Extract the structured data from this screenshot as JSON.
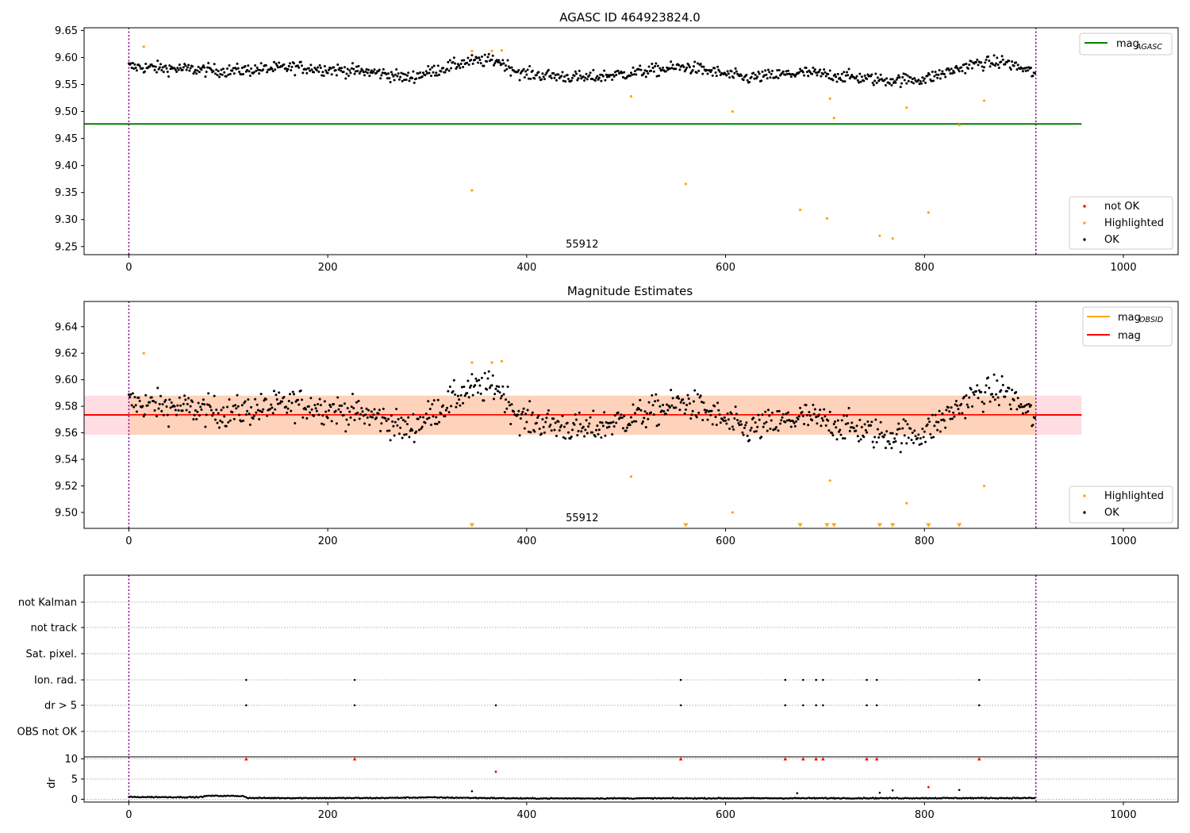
{
  "figure": {
    "ok_color": "#000000",
    "highlight_color": "#ffa500",
    "not_ok_color": "#ff0000"
  },
  "chart_data": [
    {
      "type": "scatter",
      "title": "AGASC ID 464923824.0",
      "xlim": [
        -45,
        1055
      ],
      "ylim": [
        9.235,
        9.655
      ],
      "x_ticks": [
        0,
        200,
        400,
        600,
        800,
        1000
      ],
      "y_ticks": [
        9.25,
        9.3,
        9.35,
        9.4,
        9.45,
        9.5,
        9.55,
        9.6,
        9.65
      ],
      "obs_boundaries": [
        0,
        912
      ],
      "obs_label": {
        "text": "55912",
        "x": 455
      },
      "mag_agasc": {
        "value": 9.477,
        "x_start": -45,
        "x_end": 958,
        "color": "#008000"
      },
      "series_ok": {
        "name": "OK",
        "n_points": 912,
        "baseline": [
          [
            0,
            9.583
          ],
          [
            100,
            9.575
          ],
          [
            170,
            9.582
          ],
          [
            250,
            9.572
          ],
          [
            280,
            9.562
          ],
          [
            340,
            9.592
          ],
          [
            370,
            9.595
          ],
          [
            395,
            9.57
          ],
          [
            460,
            9.562
          ],
          [
            560,
            9.583
          ],
          [
            620,
            9.562
          ],
          [
            680,
            9.572
          ],
          [
            760,
            9.558
          ],
          [
            800,
            9.56
          ],
          [
            850,
            9.588
          ],
          [
            880,
            9.592
          ],
          [
            912,
            9.57
          ]
        ]
      },
      "series_highlighted": {
        "name": "Highlighted",
        "points": [
          [
            15,
            9.62
          ],
          [
            345,
            9.612
          ],
          [
            365,
            9.612
          ],
          [
            375,
            9.613
          ],
          [
            345,
            9.354
          ],
          [
            505,
            9.528
          ],
          [
            560,
            9.366
          ],
          [
            607,
            9.5
          ],
          [
            675,
            9.318
          ],
          [
            702,
            9.302
          ],
          [
            705,
            9.524
          ],
          [
            709,
            9.488
          ],
          [
            755,
            9.27
          ],
          [
            768,
            9.265
          ],
          [
            782,
            9.507
          ],
          [
            804,
            9.313
          ],
          [
            835,
            9.475
          ],
          [
            860,
            9.52
          ]
        ]
      },
      "legend_upper": [
        {
          "label": "mag",
          "sub": "AGASC",
          "type": "line",
          "color": "#008000"
        }
      ],
      "legend_lower": [
        {
          "label": "not OK",
          "type": "marker",
          "color": "#ff0000"
        },
        {
          "label": "Highlighted",
          "type": "marker",
          "color": "#ffa500"
        },
        {
          "label": "OK",
          "type": "marker",
          "color": "#000000"
        }
      ]
    },
    {
      "type": "scatter",
      "title": "Magnitude Estimates",
      "xlim": [
        -45,
        1055
      ],
      "ylim": [
        9.488,
        9.659
      ],
      "x_ticks": [
        0,
        200,
        400,
        600,
        800,
        1000
      ],
      "y_ticks": [
        9.5,
        9.52,
        9.54,
        9.56,
        9.58,
        9.6,
        9.62,
        9.64
      ],
      "obs_boundaries": [
        0,
        912
      ],
      "obs_label": {
        "text": "55912",
        "x": 455
      },
      "mag": {
        "value": 9.5735,
        "color": "#ff0000"
      },
      "band_full": {
        "x_start": -45,
        "x_end": 958,
        "y_low": 9.5585,
        "y_high": 9.588,
        "color": "#ffdde3"
      },
      "band_obsid": {
        "x_start": 0,
        "x_end": 912,
        "y_low": 9.5585,
        "y_high": 9.588,
        "color": "#ffd2bb"
      },
      "series_ok": {
        "name": "OK",
        "n_points": 912,
        "baseline": [
          [
            0,
            9.583
          ],
          [
            100,
            9.575
          ],
          [
            170,
            9.582
          ],
          [
            250,
            9.572
          ],
          [
            280,
            9.562
          ],
          [
            340,
            9.592
          ],
          [
            370,
            9.595
          ],
          [
            395,
            9.57
          ],
          [
            460,
            9.562
          ],
          [
            560,
            9.583
          ],
          [
            620,
            9.562
          ],
          [
            680,
            9.572
          ],
          [
            760,
            9.558
          ],
          [
            800,
            9.56
          ],
          [
            850,
            9.588
          ],
          [
            880,
            9.592
          ],
          [
            912,
            9.57
          ]
        ]
      },
      "series_highlighted": {
        "name": "Highlighted",
        "points": [
          [
            15,
            9.62
          ],
          [
            345,
            9.613
          ],
          [
            365,
            9.613
          ],
          [
            375,
            9.614
          ],
          [
            505,
            9.527
          ],
          [
            607,
            9.5
          ],
          [
            705,
            9.524
          ],
          [
            782,
            9.507
          ],
          [
            860,
            9.52
          ]
        ]
      },
      "out_of_range_x": [
        345,
        560,
        675,
        702,
        709,
        755,
        768,
        804,
        835
      ],
      "legend_upper": [
        {
          "label": "mag",
          "sub": "OBSID",
          "type": "line",
          "color": "#ffa500"
        },
        {
          "label": "mag",
          "sub": "",
          "type": "line",
          "color": "#ff0000"
        }
      ],
      "legend_lower": [
        {
          "label": "Highlighted",
          "type": "marker",
          "color": "#ffa500"
        },
        {
          "label": "OK",
          "type": "marker",
          "color": "#000000"
        }
      ]
    },
    {
      "type": "scatter",
      "title": "",
      "xlim": [
        -45,
        1055
      ],
      "x_ticks": [
        0,
        200,
        400,
        600,
        800,
        1000
      ],
      "obs_boundaries": [
        0,
        912
      ],
      "flag_rows": [
        "not Kalman",
        "not track",
        "Sat. pixel.",
        "Ion. rad.",
        "dr > 5",
        "OBS not OK"
      ],
      "flags": {
        "Ion. rad.": [
          118,
          227,
          555,
          660,
          678,
          691,
          698,
          742,
          752,
          855
        ],
        "dr > 5": [
          118,
          227,
          369,
          555,
          660,
          678,
          691,
          698,
          742,
          752,
          855
        ]
      },
      "dr": {
        "ylabel": "dr",
        "ylim": [
          -0.5,
          10.5
        ],
        "y_ticks": [
          0,
          5,
          10
        ],
        "clipped_x": [
          118,
          227,
          555,
          660,
          678,
          691,
          698,
          742,
          752,
          855
        ],
        "red_points": [
          [
            369,
            6.8
          ],
          [
            804,
            3.0
          ]
        ],
        "spikes": [
          [
            345,
            2.0
          ],
          [
            672,
            1.5
          ],
          [
            755,
            1.6
          ],
          [
            768,
            2.2
          ],
          [
            835,
            2.3
          ]
        ],
        "baseline": [
          [
            0,
            0.55
          ],
          [
            70,
            0.5
          ],
          [
            80,
            0.85
          ],
          [
            115,
            0.8
          ],
          [
            120,
            0.3
          ],
          [
            250,
            0.3
          ],
          [
            300,
            0.45
          ],
          [
            400,
            0.2
          ],
          [
            912,
            0.3
          ]
        ]
      }
    }
  ]
}
